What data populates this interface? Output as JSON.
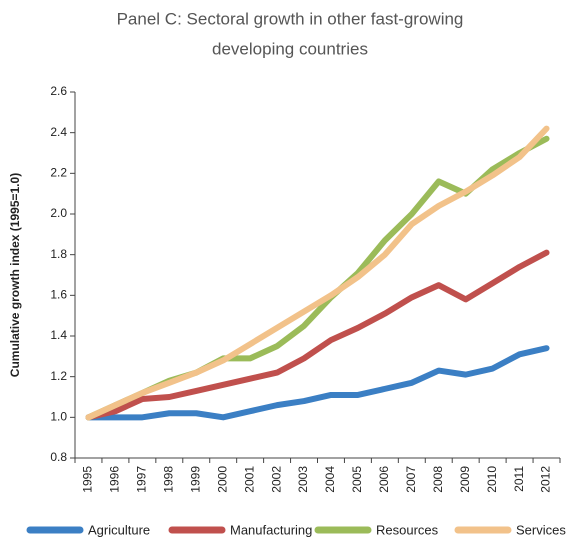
{
  "chart_data": {
    "type": "line",
    "title": "Panel C: Sectoral growth in other fast-growing developing countries",
    "title_lines": [
      "Panel C: Sectoral growth in other fast-growing",
      "developing countries"
    ],
    "y_label": "Cumulative growth index (1995=1.0)",
    "categories": [
      "1995",
      "1996",
      "1997",
      "1998",
      "1999",
      "2000",
      "2001",
      "2002",
      "2003",
      "2004",
      "2005",
      "2006",
      "2007",
      "2008",
      "2009",
      "2010",
      "2011",
      "2012"
    ],
    "series": [
      {
        "name": "Agriculture",
        "color": "#3b7fc4",
        "values": [
          1.0,
          1.0,
          1.0,
          1.02,
          1.02,
          1.0,
          1.03,
          1.06,
          1.08,
          1.11,
          1.11,
          1.14,
          1.17,
          1.23,
          1.21,
          1.24,
          1.31,
          1.34
        ]
      },
      {
        "name": "Manufacturing",
        "color": "#c0504d",
        "values": [
          1.0,
          1.03,
          1.09,
          1.1,
          1.13,
          1.16,
          1.19,
          1.22,
          1.29,
          1.38,
          1.44,
          1.51,
          1.59,
          1.65,
          1.58,
          1.66,
          1.74,
          1.81
        ]
      },
      {
        "name": "Resources",
        "color": "#9bbb59",
        "values": [
          1.0,
          1.06,
          1.12,
          1.18,
          1.22,
          1.29,
          1.29,
          1.35,
          1.45,
          1.59,
          1.71,
          1.87,
          2.0,
          2.16,
          2.1,
          2.22,
          2.3,
          2.37
        ]
      },
      {
        "name": "Services",
        "color": "#f2c28a",
        "values": [
          1.0,
          1.06,
          1.12,
          1.17,
          1.22,
          1.28,
          1.36,
          1.44,
          1.52,
          1.6,
          1.69,
          1.8,
          1.95,
          2.04,
          2.11,
          2.19,
          2.28,
          2.42
        ]
      }
    ],
    "ylim": [
      0.8,
      2.6
    ],
    "yticks": [
      0.8,
      {
        "value": 1.0,
        "label": "1.0"
      },
      1.2,
      1.4,
      1.6,
      1.8,
      {
        "value": 2.0,
        "label": "2.0"
      },
      2.2,
      2.4,
      2.6
    ],
    "grid": false,
    "legend": "bottom"
  }
}
